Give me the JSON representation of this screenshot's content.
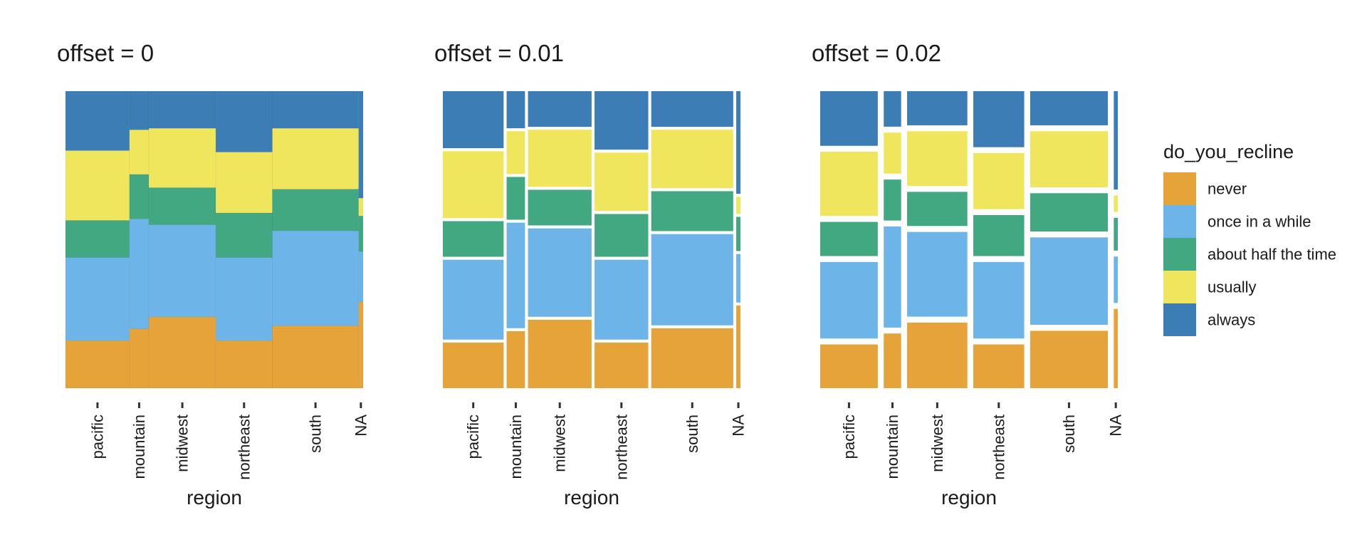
{
  "chart_data": {
    "type": "mosaic",
    "xlabel": "region",
    "categories": [
      "pacific",
      "mountain",
      "midwest",
      "northeast",
      "south",
      "NA"
    ],
    "category_widths": [
      0.215,
      0.065,
      0.225,
      0.19,
      0.29,
      0.015
    ],
    "panels": [
      {
        "title": "offset = 0",
        "offset": 0
      },
      {
        "title": "offset = 0.01",
        "offset": 0.01
      },
      {
        "title": "offset = 0.02",
        "offset": 0.02
      }
    ],
    "legend": {
      "title": "do_you_recline",
      "placement": "right",
      "entries": [
        "never",
        "once in a while",
        "about half the time",
        "usually",
        "always"
      ]
    },
    "series": [
      {
        "name": "never",
        "color": "#E5A33A",
        "values": [
          0.16,
          0.2,
          0.24,
          0.16,
          0.21,
          0.29
        ]
      },
      {
        "name": "once in a while",
        "color": "#6DB4E8",
        "values": [
          0.28,
          0.37,
          0.31,
          0.28,
          0.32,
          0.17
        ]
      },
      {
        "name": "about half the time",
        "color": "#42A882",
        "values": [
          0.125,
          0.15,
          0.125,
          0.15,
          0.14,
          0.12
        ]
      },
      {
        "name": "usually",
        "color": "#F0E65E",
        "values": [
          0.235,
          0.15,
          0.2,
          0.205,
          0.205,
          0.06
        ]
      },
      {
        "name": "always",
        "color": "#3C7DB6",
        "values": [
          0.2,
          0.13,
          0.125,
          0.205,
          0.125,
          0.36
        ]
      }
    ]
  }
}
